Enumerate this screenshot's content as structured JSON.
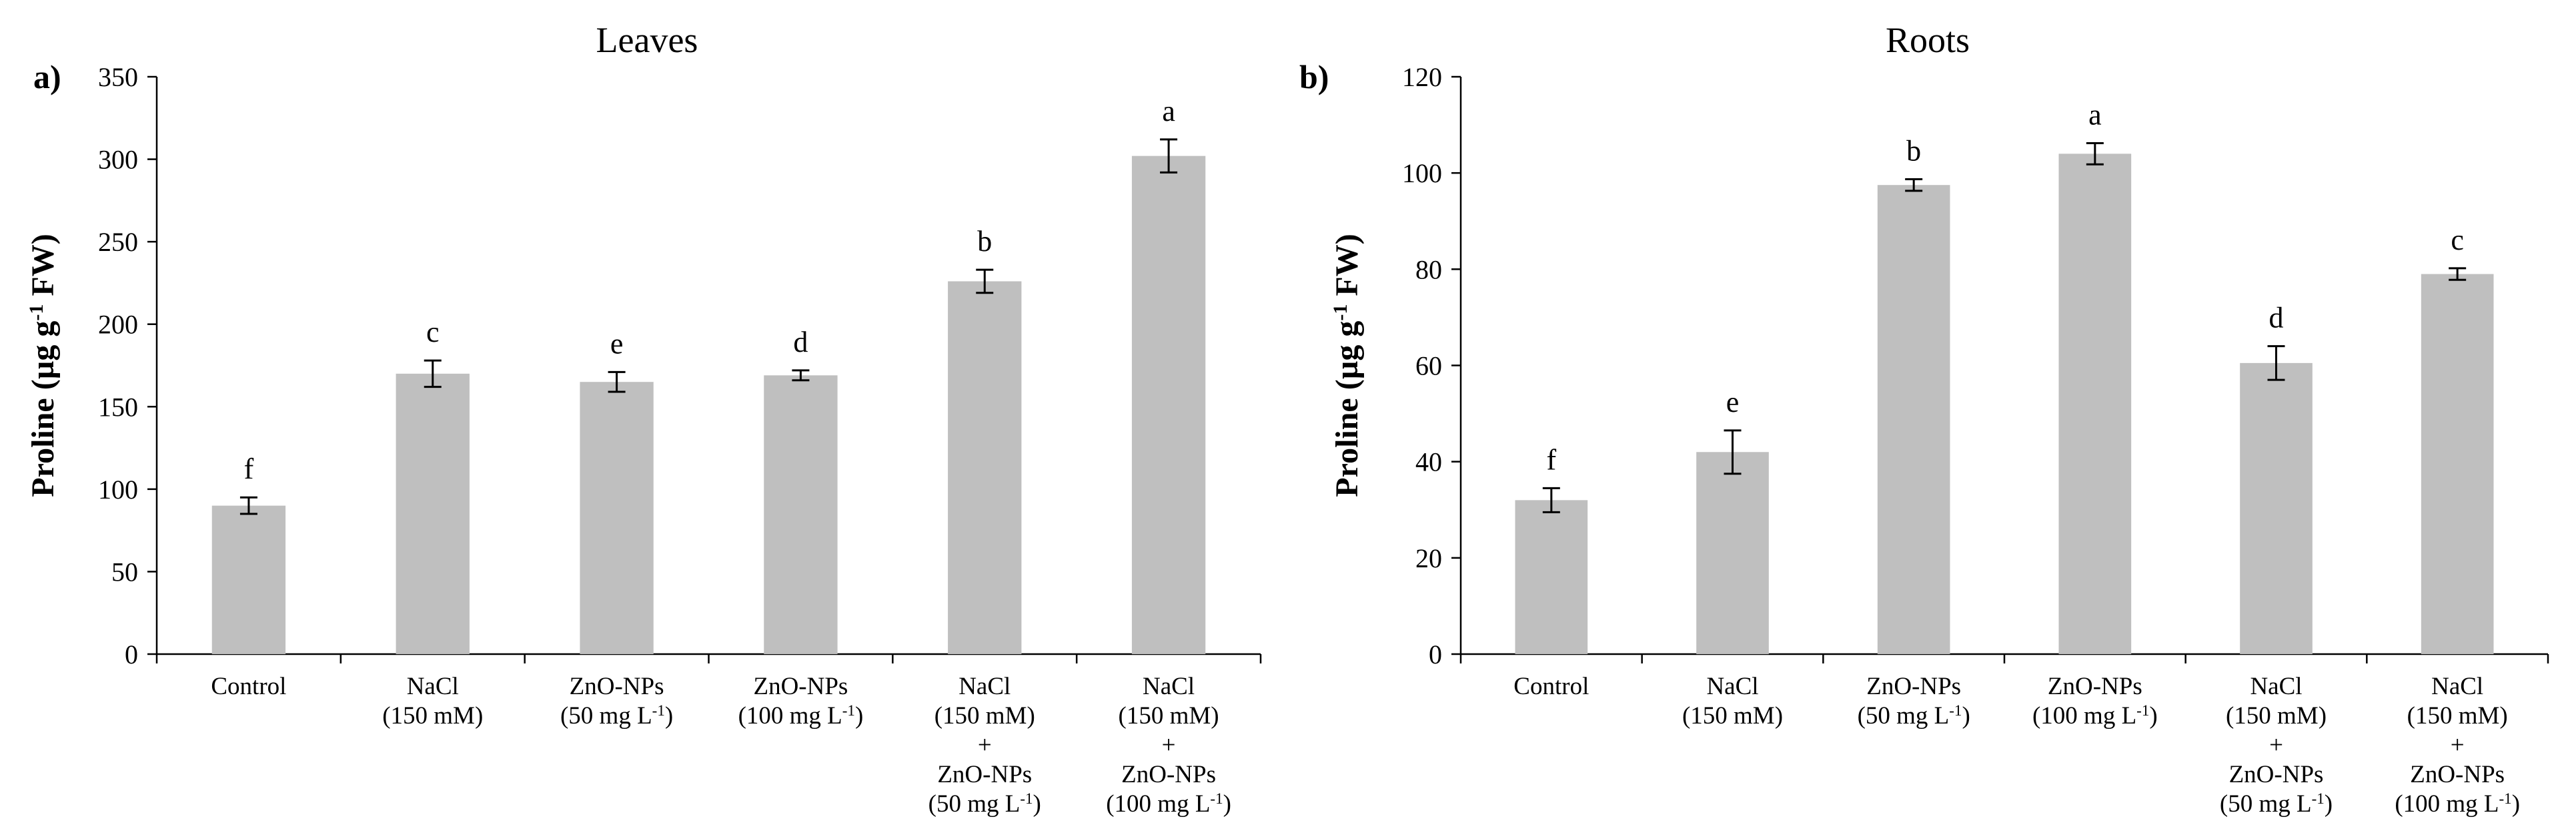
{
  "figure": {
    "x_category_labels": [
      [
        "Control"
      ],
      [
        "NaCl",
        "(150 mM)"
      ],
      [
        "ZnO-NPs",
        "(50 mg L-1)"
      ],
      [
        "ZnO-NPs",
        "(100 mg L-1)"
      ],
      [
        "NaCl",
        "(150 mM)",
        "+",
        "ZnO-NPs",
        "(50 mg L-1)"
      ],
      [
        "NaCl",
        "(150 mM)",
        "+",
        "ZnO-NPs",
        "(100 mg L-1)"
      ]
    ],
    "colors": {
      "bar": "#bfbfbf",
      "axis": "#000000",
      "background": "#ffffff"
    }
  },
  "chart_data": [
    {
      "type": "bar",
      "panel_label": "a)",
      "title": "Leaves",
      "ylabel": "Proline (µg g-1 FW)",
      "xlabel": "",
      "categories": [
        "Control",
        "NaCl (150 mM)",
        "ZnO-NPs (50 mg L-1)",
        "ZnO-NPs (100 mg L-1)",
        "NaCl (150 mM) + ZnO-NPs (50 mg L-1)",
        "NaCl (150 mM) + ZnO-NPs (100 mg L-1)"
      ],
      "values": [
        90,
        170,
        165,
        169,
        226,
        302
      ],
      "errors": [
        5,
        8,
        6,
        3,
        7,
        10
      ],
      "significance_letters": [
        "f",
        "c",
        "e",
        "d",
        "b",
        "a"
      ],
      "ylim": [
        0,
        350
      ],
      "yticks": [
        0,
        50,
        100,
        150,
        200,
        250,
        300,
        350
      ],
      "grid": false
    },
    {
      "type": "bar",
      "panel_label": "b)",
      "title": "Roots",
      "ylabel": "Proline (µg g-1 FW)",
      "xlabel": "",
      "categories": [
        "Control",
        "NaCl (150 mM)",
        "ZnO-NPs (50 mg L-1)",
        "ZnO-NPs (100 mg L-1)",
        "NaCl (150 mM) + ZnO-NPs (50 mg L-1)",
        "NaCl (150 mM) + ZnO-NPs (100 mg L-1)"
      ],
      "values": [
        32,
        42,
        97.5,
        104,
        60.5,
        79
      ],
      "errors": [
        2.5,
        4.5,
        1.2,
        2.2,
        3.5,
        1.2
      ],
      "significance_letters": [
        "f",
        "e",
        "b",
        "a",
        "d",
        "c"
      ],
      "ylim": [
        0,
        120
      ],
      "yticks": [
        0,
        20,
        40,
        60,
        80,
        100,
        120
      ],
      "grid": false
    }
  ]
}
